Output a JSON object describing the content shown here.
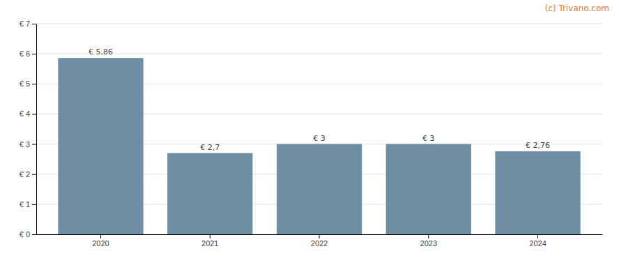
{
  "chart_data": {
    "type": "bar",
    "categories": [
      "2020",
      "2021",
      "2022",
      "2023",
      "2024"
    ],
    "values": [
      5.86,
      2.7,
      3.0,
      3.0,
      2.76
    ],
    "value_labels": [
      "€ 5,86",
      "€ 2,7",
      "€ 3",
      "€ 3",
      "€ 2,76"
    ],
    "data_labels": true,
    "color": "#6e8fa3",
    "ylim": [
      0,
      7
    ],
    "yticks": [
      {
        "value": 0,
        "label": "€ 0"
      },
      {
        "value": 1,
        "label": "€ 1"
      },
      {
        "value": 2,
        "label": "€ 2"
      },
      {
        "value": 3,
        "label": "€ 3"
      },
      {
        "value": 4,
        "label": "€ 4"
      },
      {
        "value": 5,
        "label": "€ 5"
      },
      {
        "value": 6,
        "label": "€ 6"
      },
      {
        "value": 7,
        "label": "€ 7"
      }
    ],
    "grid": true,
    "annotations": [
      {
        "text": "(c) Trivano.com",
        "color": "#e87722"
      }
    ]
  }
}
